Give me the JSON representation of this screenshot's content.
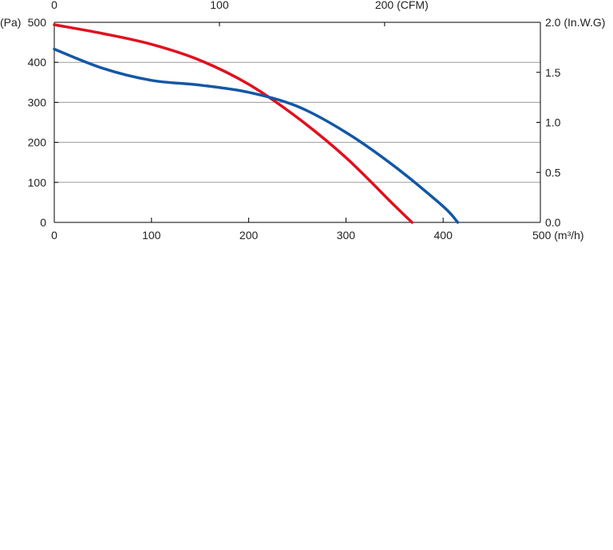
{
  "chart_data": {
    "type": "line",
    "x_axis": {
      "min": 0,
      "max": 500,
      "ticks": [
        0,
        100,
        200,
        300,
        400,
        500
      ],
      "tick_labels": [
        "0",
        "100",
        "200",
        "300",
        "400",
        "500"
      ],
      "unit_label": "(m³/h)"
    },
    "x_top_axis": {
      "ticks_cfm": [
        0,
        100,
        200
      ],
      "tick_labels": [
        "0",
        "100",
        "200"
      ],
      "unit_label": "(CFM)",
      "cfm_per_m3h": 0.5886
    },
    "y_axis": {
      "min": 0,
      "max": 500,
      "ticks": [
        0,
        100,
        200,
        300,
        400,
        500
      ],
      "tick_labels": [
        "0",
        "100",
        "200",
        "300",
        "400",
        "500"
      ],
      "unit_label": "(Pa)"
    },
    "y_right_axis": {
      "min": 0,
      "max": 2.0,
      "ticks": [
        0,
        0.5,
        1.0,
        1.5,
        2.0
      ],
      "tick_labels": [
        "0.0",
        "0.5",
        "1.0",
        "1.5",
        "2.0"
      ],
      "unit_label": "(In.W.G)"
    },
    "grid": true,
    "series": [
      {
        "color": "#e0101e",
        "x": [
          0,
          50,
          100,
          150,
          200,
          250,
          300,
          350,
          368
        ],
        "y": [
          494,
          472,
          445,
          405,
          345,
          262,
          162,
          42,
          0
        ]
      },
      {
        "color": "#1357a6",
        "x": [
          0,
          50,
          100,
          150,
          200,
          250,
          300,
          350,
          400,
          415
        ],
        "y": [
          433,
          385,
          355,
          343,
          325,
          290,
          225,
          140,
          40,
          0
        ]
      }
    ]
  }
}
